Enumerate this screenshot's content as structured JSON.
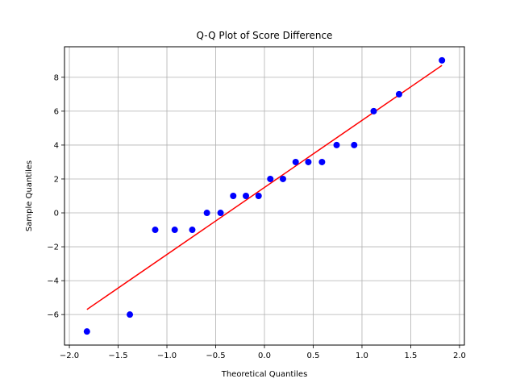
{
  "chart_data": {
    "type": "scatter",
    "title": "Q-Q Plot of Score Difference",
    "xlabel": "Theoretical Quantiles",
    "ylabel": "Sample Quantiles",
    "xlim": [
      -2.05,
      2.05
    ],
    "ylim": [
      -7.8,
      9.8
    ],
    "grid": true,
    "x_ticks": [
      -2.0,
      -1.5,
      -1.0,
      -0.5,
      0.0,
      0.5,
      1.0,
      1.5,
      2.0
    ],
    "x_tick_labels": [
      "−2.0",
      "−1.5",
      "−1.0",
      "−0.5",
      "0.0",
      "0.5",
      "1.0",
      "1.5",
      "2.0"
    ],
    "y_ticks": [
      -6,
      -4,
      -2,
      0,
      2,
      4,
      6,
      8
    ],
    "y_tick_labels": [
      "−6",
      "−4",
      "−2",
      "0",
      "2",
      "4",
      "6",
      "8"
    ],
    "series": [
      {
        "kind": "points",
        "color": "#0000ff",
        "x": [
          -1.82,
          -1.38,
          -1.12,
          -0.92,
          -0.74,
          -0.59,
          -0.45,
          -0.32,
          -0.19,
          -0.06,
          0.06,
          0.19,
          0.32,
          0.45,
          0.59,
          0.74,
          0.92,
          1.12,
          1.38,
          1.82
        ],
        "y": [
          -7,
          -6,
          -1,
          -1,
          -1,
          0,
          0,
          1,
          1,
          1,
          2,
          2,
          3,
          3,
          3,
          4,
          4,
          6,
          7,
          9
        ]
      },
      {
        "kind": "fit-line",
        "color": "#ff0000",
        "x": [
          -1.82,
          1.82
        ],
        "y": [
          -5.7,
          8.7
        ]
      }
    ]
  }
}
